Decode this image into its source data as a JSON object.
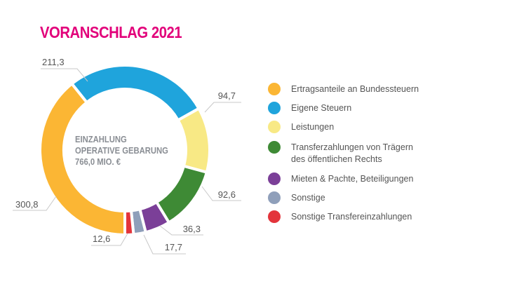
{
  "title": "VORANSCHLAG 2021",
  "chart_data": {
    "type": "pie",
    "donut": true,
    "center_label": [
      "EINZAHLUNG",
      "OPERATIVE GEBARUNG",
      "766,0 MIO. €"
    ],
    "legend_position": "right",
    "slices": [
      {
        "name": "Eigene Steuern",
        "value": 211.3,
        "label": "211,3",
        "color": "#1fa4dc"
      },
      {
        "name": "Leistungen",
        "value": 94.7,
        "label": "94,7",
        "color": "#f8e985"
      },
      {
        "name": "Transferzahlungen von Trägern des öffentlichen Rechts",
        "value": 92.6,
        "label": "92,6",
        "color": "#3e8a35"
      },
      {
        "name": "Mieten & Pachte, Beteiligungen",
        "value": 36.3,
        "label": "36,3",
        "color": "#7b3f98"
      },
      {
        "name": "Sonstige",
        "value": 17.7,
        "label": "17,7",
        "color": "#8f9fba"
      },
      {
        "name": "Sonstige Transfereinzahlungen",
        "value": 12.6,
        "label": "12,6",
        "color": "#e3343b"
      },
      {
        "name": "Ertragsanteile an Bundessteuern",
        "value": 300.8,
        "label": "300,8",
        "color": "#fbb634"
      }
    ],
    "legend": [
      {
        "text": "Ertragsanteile an Bundessteuern",
        "color": "#fbb634"
      },
      {
        "text": "Eigene Steuern",
        "color": "#1fa4dc"
      },
      {
        "text": "Leistungen",
        "color": "#f8e985"
      },
      {
        "text": "Transferzahlungen von Trägern\ndes öffentlichen Rechts",
        "color": "#3e8a35"
      },
      {
        "text": "Mieten & Pachte, Beteiligungen",
        "color": "#7b3f98"
      },
      {
        "text": "Sonstige",
        "color": "#8f9fba"
      },
      {
        "text": "Sonstige Transfereinzahlungen",
        "color": "#e3343b"
      }
    ]
  }
}
